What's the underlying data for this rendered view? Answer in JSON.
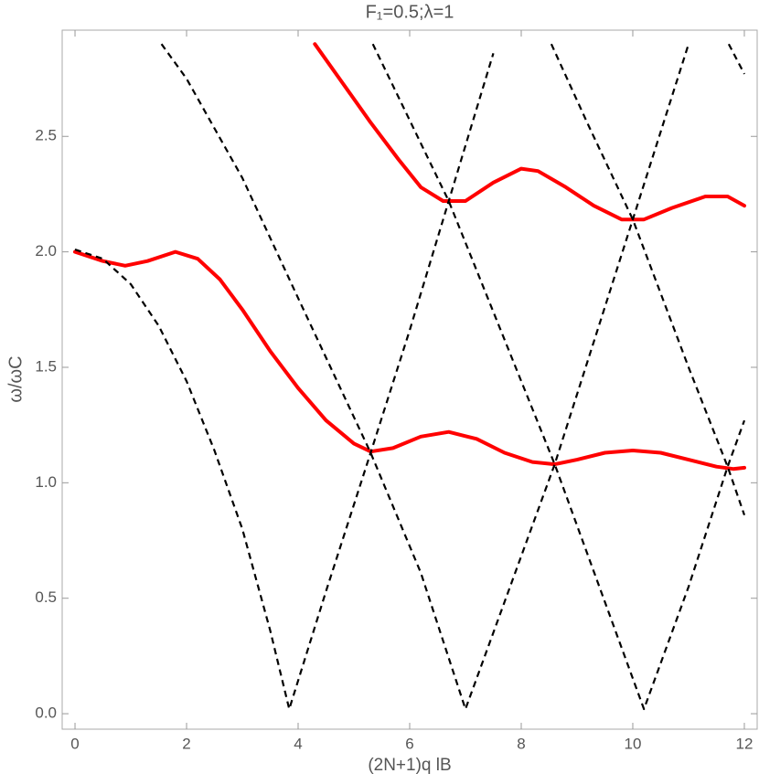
{
  "chart_data": {
    "type": "line",
    "title": "F₁=0.5;λ=1",
    "x_label": "(2N+1)q lB",
    "y_label": "ω/ωC",
    "xlim": [
      -0.23,
      12.23
    ],
    "ylim": [
      -0.067,
      2.96
    ],
    "xticks": [
      0,
      2,
      4,
      6,
      8,
      10,
      12
    ],
    "yticks": [
      {
        "value": 0,
        "label": "0.0"
      },
      {
        "value": 0.5,
        "label": "0.5"
      },
      {
        "value": 1,
        "label": "1.0"
      },
      {
        "value": 1.5,
        "label": "1.5"
      },
      {
        "value": 2,
        "label": "2.0"
      },
      {
        "value": 2.5,
        "label": "2.5"
      }
    ],
    "series": [
      {
        "color": "#ff0000",
        "style": "solid",
        "x": [
          0,
          0.5,
          0.9,
          1.3,
          1.8,
          2.2,
          2.6,
          3.0,
          3.5,
          4.0,
          4.5,
          5.0,
          5.3,
          5.7,
          6.2,
          6.7,
          7.2,
          7.7,
          8.2,
          8.6,
          9.0,
          9.5,
          10.0,
          10.5,
          11.0,
          11.5,
          11.8,
          12
        ],
        "values": [
          2.0,
          1.96,
          1.94,
          1.96,
          2.0,
          1.97,
          1.88,
          1.75,
          1.57,
          1.41,
          1.27,
          1.17,
          1.135,
          1.15,
          1.2,
          1.22,
          1.19,
          1.13,
          1.09,
          1.08,
          1.1,
          1.13,
          1.14,
          1.13,
          1.1,
          1.07,
          1.06,
          1.065
        ]
      },
      {
        "color": "#ff0000",
        "style": "solid",
        "x": [
          4.3,
          4.8,
          5.3,
          5.8,
          6.2,
          6.6,
          7.0,
          7.5,
          8.0,
          8.3,
          8.8,
          9.3,
          9.8,
          10.2,
          10.7,
          11.3,
          11.7,
          12
        ],
        "values": [
          2.9,
          2.73,
          2.56,
          2.4,
          2.28,
          2.22,
          2.22,
          2.3,
          2.36,
          2.35,
          2.28,
          2.2,
          2.14,
          2.14,
          2.19,
          2.24,
          2.24,
          2.2
        ]
      },
      {
        "color": "#000000",
        "style": "dashed",
        "x": [
          0,
          0.5,
          1,
          1.5,
          2,
          2.5,
          3,
          3.5,
          3.84,
          4.5,
          5.3,
          6.0,
          6.7,
          7.5
        ],
        "values": [
          2.01,
          1.97,
          1.86,
          1.68,
          1.44,
          1.14,
          0.8,
          0.36,
          0.02,
          0.53,
          1.13,
          1.66,
          2.22,
          2.86
        ]
      },
      {
        "color": "#000000",
        "style": "dashed",
        "x": [
          1.55,
          2,
          3,
          4,
          5.3,
          6.2,
          7.0,
          7.8,
          8.6,
          9.3,
          10,
          11.0
        ],
        "values": [
          2.9,
          2.75,
          2.32,
          1.8,
          1.13,
          0.61,
          0.02,
          0.55,
          1.08,
          1.61,
          2.14,
          2.9
        ]
      },
      {
        "color": "#000000",
        "style": "dashed",
        "x": [
          5.34,
          6,
          6.7,
          7.6,
          8.6,
          9.4,
          10.2,
          11,
          11.7,
          12
        ],
        "values": [
          2.9,
          2.57,
          2.22,
          1.68,
          1.08,
          0.55,
          0.02,
          0.55,
          1.07,
          1.27
        ]
      },
      {
        "color": "#000000",
        "style": "dashed",
        "x": [
          8.54,
          9.2,
          10,
          11,
          11.7,
          12
        ],
        "values": [
          2.9,
          2.55,
          2.14,
          1.5,
          1.07,
          0.86
        ]
      },
      {
        "color": "#000000",
        "style": "dashed",
        "x": [
          11.72,
          12
        ],
        "values": [
          2.9,
          2.77
        ]
      }
    ]
  }
}
